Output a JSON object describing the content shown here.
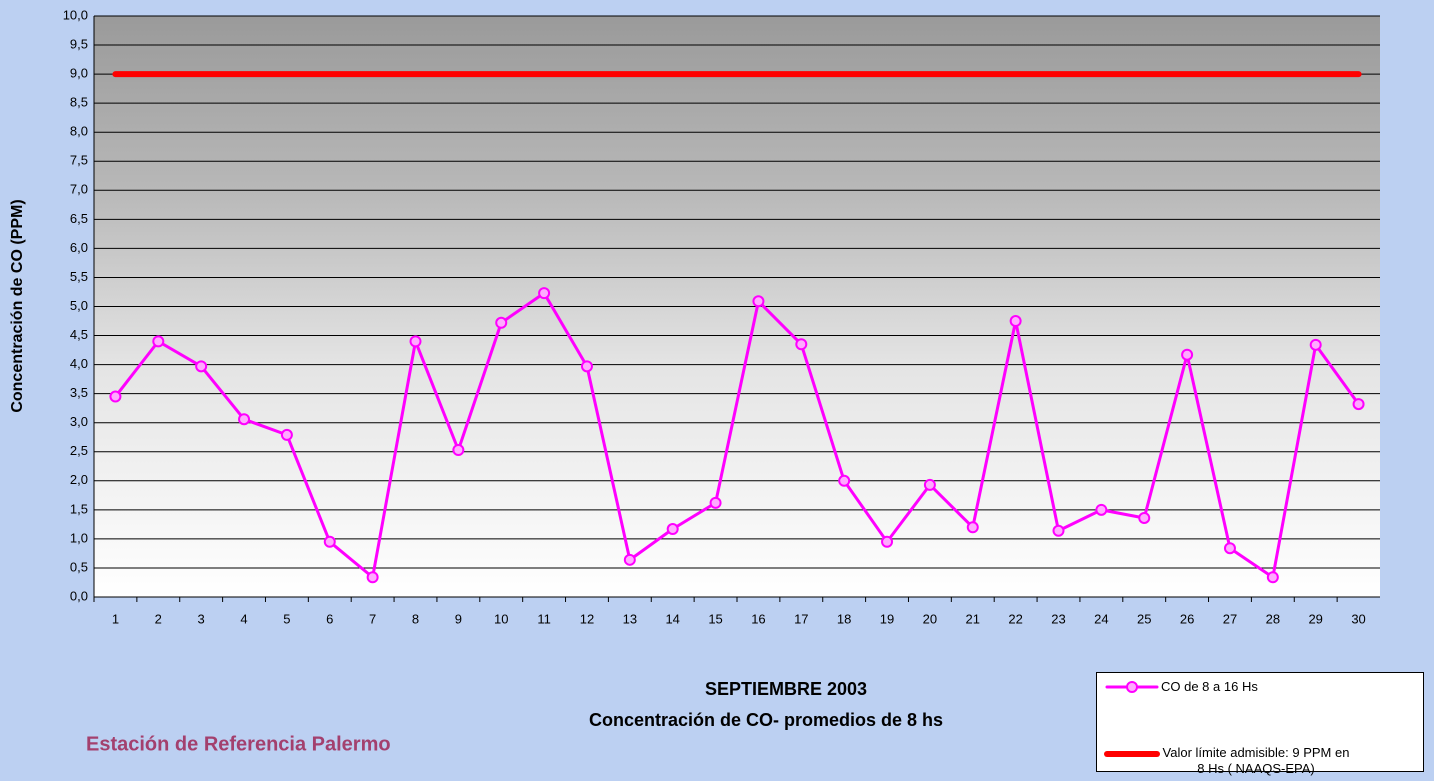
{
  "chart_data": {
    "type": "line",
    "title": "SEPTIEMBRE 2003",
    "subtitle": "Concentración de CO- promedios de 8 hs",
    "annotation": "Estación de Referencia Palermo",
    "y_label": "Concentración de CO (PPM)",
    "categories": [
      "1",
      "2",
      "3",
      "4",
      "5",
      "6",
      "7",
      "8",
      "9",
      "10",
      "11",
      "12",
      "13",
      "14",
      "15",
      "16",
      "17",
      "18",
      "19",
      "20",
      "21",
      "22",
      "23",
      "24",
      "25",
      "26",
      "27",
      "28",
      "29",
      "30"
    ],
    "series": [
      {
        "name": "CO de 8 a 16 Hs",
        "color": "#ff00ff",
        "marker": true,
        "values": [
          3.45,
          4.4,
          3.97,
          3.06,
          2.79,
          0.95,
          0.34,
          4.4,
          2.53,
          4.72,
          5.23,
          3.97,
          0.64,
          1.17,
          1.62,
          5.09,
          4.35,
          2.0,
          0.95,
          1.93,
          1.2,
          4.75,
          1.14,
          1.5,
          1.36,
          4.17,
          0.84,
          0.34,
          4.34,
          3.32
        ]
      },
      {
        "name": "Valor límite admisible: 9 PPM en 8 Hs ( NAAQS-EPA)",
        "color": "#ff0000",
        "marker": false,
        "values": [
          9,
          9,
          9,
          9,
          9,
          9,
          9,
          9,
          9,
          9,
          9,
          9,
          9,
          9,
          9,
          9,
          9,
          9,
          9,
          9,
          9,
          9,
          9,
          9,
          9,
          9,
          9,
          9,
          9,
          9
        ]
      }
    ],
    "ylim": [
      0,
      10
    ],
    "yticks": [
      {
        "value": 0,
        "label": "0,0"
      },
      {
        "value": 0.5,
        "label": "0,5"
      },
      {
        "value": 1,
        "label": "1,0"
      },
      {
        "value": 1.5,
        "label": "1,5"
      },
      {
        "value": 2,
        "label": "2,0"
      },
      {
        "value": 2.5,
        "label": "2,5"
      },
      {
        "value": 3,
        "label": "3,0"
      },
      {
        "value": 3.5,
        "label": "3,5"
      },
      {
        "value": 4,
        "label": "4,0"
      },
      {
        "value": 4.5,
        "label": "4,5"
      },
      {
        "value": 5,
        "label": "5,0"
      },
      {
        "value": 5.5,
        "label": "5,5"
      },
      {
        "value": 6,
        "label": "6,0"
      },
      {
        "value": 6.5,
        "label": "6,5"
      },
      {
        "value": 7,
        "label": "7,0"
      },
      {
        "value": 7.5,
        "label": "7,5"
      },
      {
        "value": 8,
        "label": "8,0"
      },
      {
        "value": 8.5,
        "label": "8,5"
      },
      {
        "value": 9,
        "label": "9,0"
      },
      {
        "value": 9.5,
        "label": "9,5"
      },
      {
        "value": 10,
        "label": "10,0"
      }
    ],
    "grid": true,
    "legend": "bottom-right"
  }
}
